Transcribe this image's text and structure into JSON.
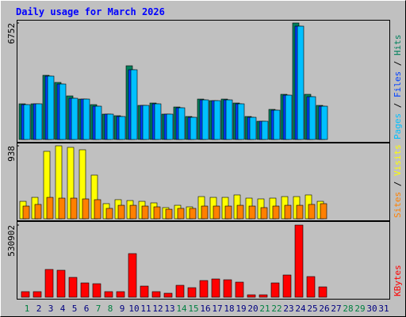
{
  "chart_data": [
    {
      "type": "bar",
      "title": "Daily usage for March 2026",
      "ylim": [
        0,
        6752
      ],
      "yticks": [
        6752
      ],
      "legend_separator": " / ",
      "series": [
        {
          "name": "Hits",
          "color": "#00805c",
          "values": [
            2067,
            2067,
            3720,
            3307,
            2526,
            2342,
            2021,
            1470,
            1378,
            4272,
            1975,
            2113,
            1470,
            1883,
            1332,
            2342,
            2251,
            2342,
            2113,
            1332,
            1056,
            1745,
            2618,
            6752,
            2618,
            1975,
            0,
            0,
            0,
            0,
            0
          ]
        },
        {
          "name": "Files",
          "color": "#0040ff",
          "values": [
            2021,
            2067,
            3674,
            3215,
            2388,
            2342,
            1929,
            1470,
            1332,
            4042,
            1975,
            2067,
            1470,
            1837,
            1286,
            2296,
            2251,
            2296,
            2067,
            1286,
            1056,
            1699,
            2571,
            6568,
            2480,
            1929,
            0,
            0,
            0,
            0,
            0
          ]
        },
        {
          "name": "Pages",
          "color": "#00c0ff",
          "values": [
            2021,
            2067,
            3674,
            3215,
            2388,
            2342,
            1929,
            1470,
            1332,
            4042,
            1975,
            2067,
            1470,
            1837,
            1286,
            2296,
            2251,
            2296,
            2067,
            1286,
            1056,
            1699,
            2571,
            6568,
            2480,
            1929,
            0,
            0,
            0,
            0,
            0
          ]
        }
      ]
    },
    {
      "type": "bar",
      "ylim": [
        0,
        938
      ],
      "yticks": [
        938
      ],
      "legend_separator": " / ",
      "series": [
        {
          "name": "Visits",
          "color": "#ffff00",
          "values": [
            224,
            275,
            867,
            938,
            918,
            887,
            561,
            194,
            245,
            234,
            224,
            204,
            143,
            173,
            153,
            285,
            275,
            275,
            306,
            265,
            255,
            265,
            285,
            285,
            306,
            224,
            0,
            0,
            0,
            0,
            0
          ]
        },
        {
          "name": "Sites",
          "color": "#ff8000",
          "values": [
            163,
            184,
            275,
            265,
            265,
            255,
            245,
            133,
            173,
            173,
            163,
            153,
            122,
            133,
            133,
            163,
            163,
            163,
            173,
            163,
            143,
            163,
            173,
            173,
            184,
            194,
            0,
            0,
            0,
            0,
            0
          ]
        }
      ]
    },
    {
      "type": "bar",
      "ylim": [
        0,
        530902
      ],
      "yticks": [
        530902
      ],
      "categories": [
        "1",
        "2",
        "3",
        "4",
        "5",
        "6",
        "7",
        "8",
        "9",
        "10",
        "11",
        "12",
        "13",
        "14",
        "15",
        "16",
        "17",
        "18",
        "19",
        "20",
        "21",
        "22",
        "23",
        "24",
        "25",
        "26",
        "27",
        "28",
        "29",
        "30",
        "31"
      ],
      "category_colors": [
        "#008040",
        "#000080",
        "#000080",
        "#000080",
        "#000080",
        "#000080",
        "#008040",
        "#008040",
        "#000080",
        "#000080",
        "#000080",
        "#000080",
        "#000080",
        "#008040",
        "#008040",
        "#000080",
        "#000080",
        "#000080",
        "#000080",
        "#000080",
        "#008040",
        "#008040",
        "#000080",
        "#000080",
        "#000080",
        "#000080",
        "#000080",
        "#008040",
        "#008040",
        "#000080",
        "#000080"
      ],
      "series": [
        {
          "name": "KBytes",
          "color": "#ff0000",
          "values": [
            40838,
            40838,
            204190,
            198356,
            145850,
            105012,
            99178,
            40838,
            40838,
            320870,
            81676,
            40838,
            29170,
            87510,
            70008,
            122514,
            134182,
            128348,
            110846,
            17502,
            17502,
            105012,
            163352,
            530902,
            151684,
            75842,
            0,
            0,
            0,
            0,
            0
          ]
        }
      ]
    }
  ]
}
